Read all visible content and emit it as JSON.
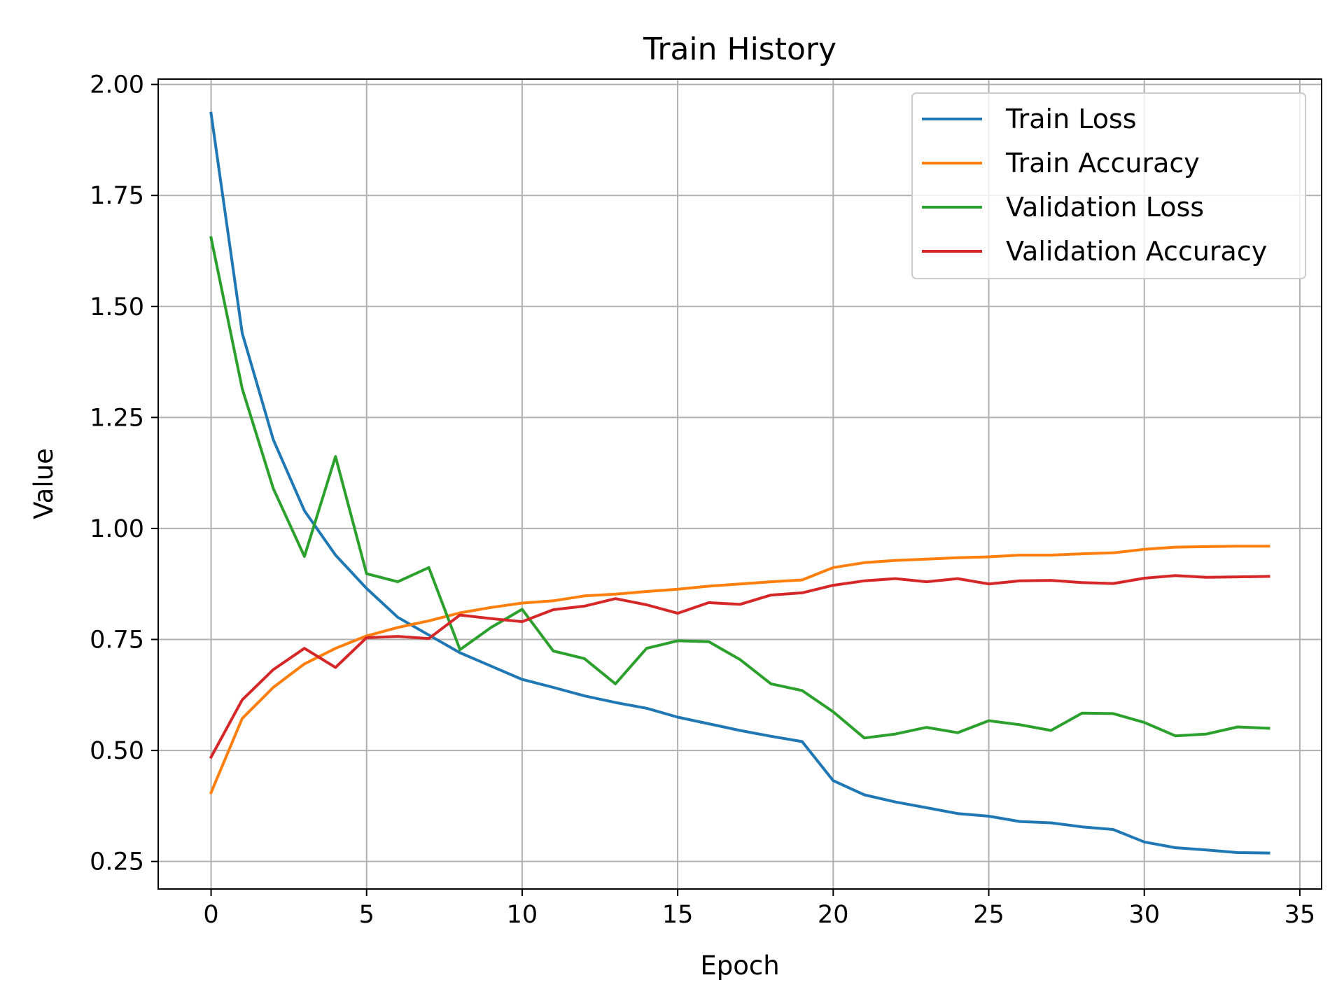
{
  "chart_data": {
    "type": "line",
    "title": "Train History",
    "xlabel": "Epoch",
    "ylabel": "Value",
    "xlim": [
      -1.7,
      35.7
    ],
    "ylim": [
      0.188,
      2.012
    ],
    "x_ticks": [
      0,
      5,
      10,
      15,
      20,
      25,
      30,
      35
    ],
    "y_ticks": [
      0.25,
      0.5,
      0.75,
      1.0,
      1.25,
      1.5,
      1.75,
      2.0
    ],
    "y_tick_labels": [
      "0.25",
      "0.50",
      "0.75",
      "1.00",
      "1.25",
      "1.50",
      "1.75",
      "2.00"
    ],
    "grid": true,
    "legend_position": "top-right",
    "x": [
      0,
      1,
      2,
      3,
      4,
      5,
      6,
      7,
      8,
      9,
      10,
      11,
      12,
      13,
      14,
      15,
      16,
      17,
      18,
      19,
      20,
      21,
      22,
      23,
      24,
      25,
      26,
      27,
      28,
      29,
      30,
      31,
      32,
      33,
      34
    ],
    "series": [
      {
        "name": "Train Loss",
        "color": "#1f77b4",
        "values": [
          1.935,
          1.44,
          1.2,
          1.04,
          0.94,
          0.865,
          0.8,
          0.76,
          0.72,
          0.69,
          0.66,
          0.642,
          0.623,
          0.608,
          0.595,
          0.575,
          0.56,
          0.545,
          0.532,
          0.52,
          0.432,
          0.4,
          0.384,
          0.371,
          0.358,
          0.352,
          0.34,
          0.337,
          0.328,
          0.322,
          0.294,
          0.281,
          0.276,
          0.27,
          0.269
        ]
      },
      {
        "name": "Train Accuracy",
        "color": "#ff7f0e",
        "values": [
          0.405,
          0.572,
          0.642,
          0.695,
          0.73,
          0.758,
          0.777,
          0.792,
          0.81,
          0.822,
          0.832,
          0.837,
          0.848,
          0.852,
          0.858,
          0.863,
          0.87,
          0.875,
          0.88,
          0.884,
          0.912,
          0.923,
          0.928,
          0.931,
          0.934,
          0.936,
          0.94,
          0.94,
          0.943,
          0.945,
          0.953,
          0.958,
          0.959,
          0.96,
          0.96
        ]
      },
      {
        "name": "Validation Loss",
        "color": "#2ca02c",
        "values": [
          1.655,
          1.315,
          1.09,
          0.937,
          1.162,
          0.898,
          0.88,
          0.912,
          0.727,
          0.777,
          0.818,
          0.724,
          0.707,
          0.65,
          0.73,
          0.747,
          0.745,
          0.705,
          0.65,
          0.635,
          0.587,
          0.528,
          0.537,
          0.552,
          0.54,
          0.567,
          0.558,
          0.545,
          0.584,
          0.583,
          0.563,
          0.533,
          0.537,
          0.553,
          0.55
        ]
      },
      {
        "name": "Validation Accuracy",
        "color": "#d62728",
        "values": [
          0.485,
          0.614,
          0.682,
          0.73,
          0.687,
          0.754,
          0.757,
          0.752,
          0.805,
          0.797,
          0.79,
          0.817,
          0.825,
          0.842,
          0.828,
          0.809,
          0.833,
          0.829,
          0.85,
          0.855,
          0.872,
          0.882,
          0.887,
          0.88,
          0.887,
          0.875,
          0.882,
          0.883,
          0.878,
          0.876,
          0.888,
          0.894,
          0.89,
          0.891,
          0.892
        ]
      }
    ]
  }
}
